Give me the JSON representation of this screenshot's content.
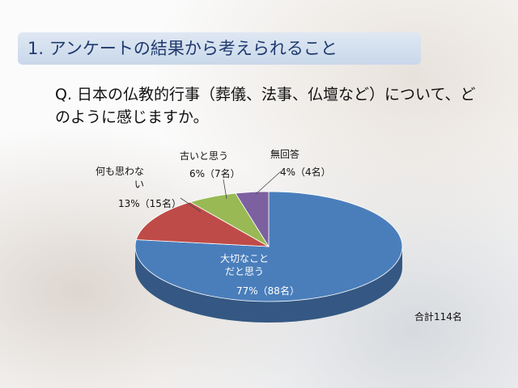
{
  "slide": {
    "title": "1. アンケートの結果から考えられること"
  },
  "chart_data": {
    "type": "pie",
    "title": "Q. 日本の仏教的行事（葬儀、法事、仏壇など）について、どのように感じますか。",
    "categories": [
      "大切なこと\nだと思う",
      "何も思わな\nい",
      "古いと思う",
      "無回答"
    ],
    "values": [
      77,
      13,
      6,
      4
    ],
    "value_labels": [
      "77%（88名）",
      "13%（15名）",
      "6%（7名）",
      "4%（4名）"
    ],
    "colors": [
      "#4a7ebb",
      "#be4b48",
      "#98b954",
      "#7d60a0"
    ],
    "annotation": "合計114名"
  }
}
